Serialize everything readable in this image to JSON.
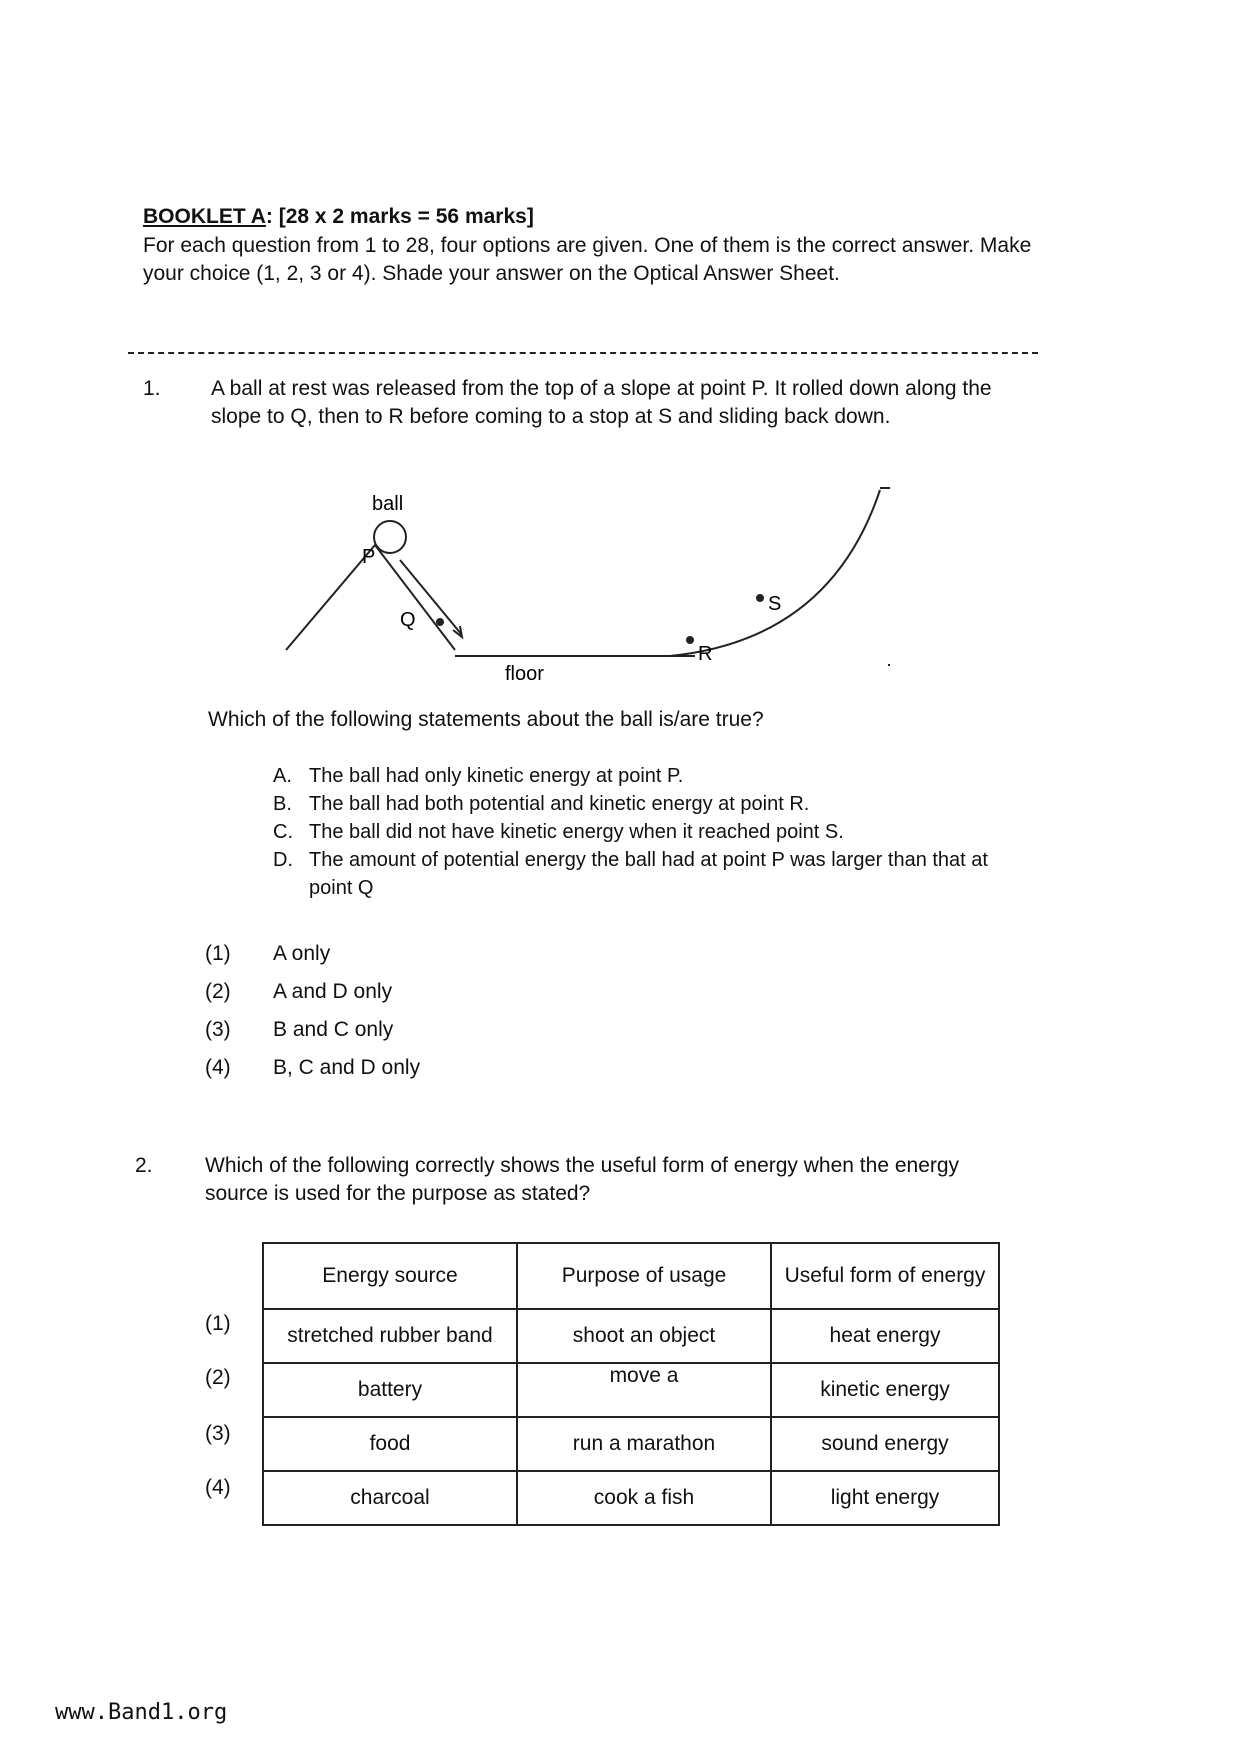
{
  "header": {
    "title": "BOOKLET A",
    "marks": ": [28 x 2 marks = 56 marks]",
    "instructions": "For each question from 1 to 28, four options are given. One of them is the correct answer. Make your choice (1, 2, 3 or 4). Shade your answer on the Optical Answer Sheet."
  },
  "q1": {
    "number": "1.",
    "text": "A ball at rest was released from the top of a slope at point P. It rolled down along the slope to Q, then to R before coming to a stop at S and sliding back down.",
    "diagram": {
      "ball": "ball",
      "p": "P",
      "q": "Q",
      "r": "R",
      "s": "S",
      "floor": "floor"
    },
    "prompt": "Which of the following statements about the ball is/are true?",
    "statements": [
      {
        "l": "A.",
        "t": "The ball had only kinetic energy at point P."
      },
      {
        "l": "B.",
        "t": "The ball had both potential and kinetic energy at point R."
      },
      {
        "l": "C.",
        "t": "The ball did not have kinetic energy when it reached point S."
      },
      {
        "l": "D.",
        "t": "The amount of potential energy the ball had at point P was larger than that at point Q"
      }
    ],
    "options": [
      {
        "n": "(1)",
        "t": "A only"
      },
      {
        "n": "(2)",
        "t": "A and D only"
      },
      {
        "n": "(3)",
        "t": "B and C only"
      },
      {
        "n": "(4)",
        "t": "B, C and D only"
      }
    ]
  },
  "q2": {
    "number": "2.",
    "text": "Which of the following correctly shows the useful form of energy when the energy source is used for the purpose as stated?",
    "headers": [
      "Energy source",
      "Purpose of usage",
      "Useful form of energy"
    ],
    "rows": [
      {
        "n": "(1)",
        "c": [
          "stretched rubber band",
          "shoot an object",
          "heat energy"
        ]
      },
      {
        "n": "(2)",
        "c": [
          "battery",
          "move a",
          "kinetic energy"
        ]
      },
      {
        "n": "(3)",
        "c": [
          "food",
          "run a marathon",
          "sound energy"
        ]
      },
      {
        "n": "(4)",
        "c": [
          "charcoal",
          "cook a fish",
          "light energy"
        ]
      }
    ]
  },
  "footer": "www.Band1.org"
}
